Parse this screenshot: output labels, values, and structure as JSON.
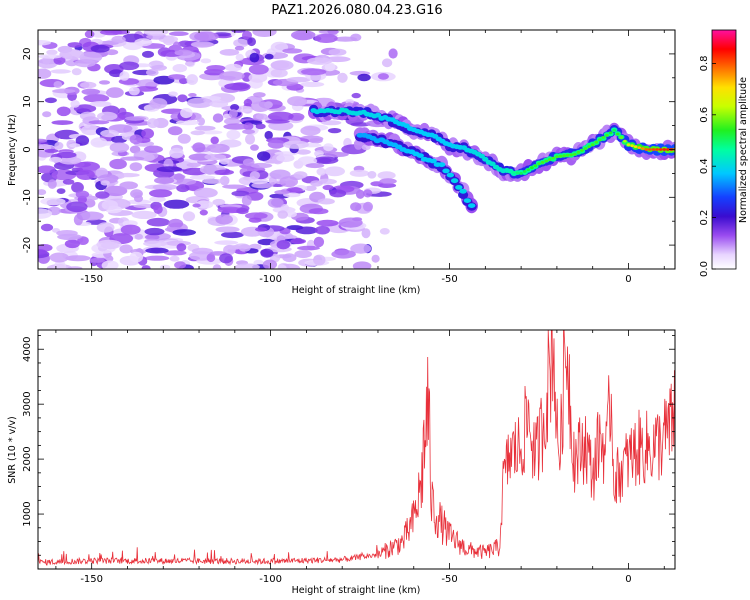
{
  "title": "PAZ1.2026.080.04.23.G16",
  "colors": {
    "snr_line": "#e8303a",
    "frame": "#000000",
    "track": "#2b0bc9"
  },
  "chart_data": [
    {
      "type": "heatmap",
      "xlabel": "Height of straight line (km)",
      "ylabel": "Frequency (Hz)",
      "xlim": [
        -165,
        13
      ],
      "ylim": [
        -25,
        25
      ],
      "xticks": [
        "-150",
        "-100",
        "-50",
        "0"
      ],
      "yticks": [
        "20",
        "10",
        "0",
        "-10",
        "-20"
      ],
      "colorbar": {
        "label": "Normalized spectral amplitude",
        "range": [
          0.0,
          0.93
        ],
        "ticks": [
          "0.0",
          "0.2",
          "0.4",
          "0.6",
          "0.8"
        ],
        "colormap": "rainbow (purple-blue-cyan-green-yellow-red-magenta)"
      },
      "main_track": {
        "height_km": [
          -88,
          -80,
          -72,
          -66,
          -60,
          -55,
          -50,
          -45,
          -40,
          -35,
          -30,
          -25,
          -20,
          -15,
          -10,
          -6,
          -4,
          0,
          5,
          10,
          13
        ],
        "frequency_hz": [
          8,
          8,
          7.5,
          6,
          4,
          3,
          1,
          0,
          -2,
          -4.5,
          -5,
          -3,
          -1.5,
          -1,
          1,
          3,
          4,
          1,
          0,
          0,
          0
        ],
        "amplitude": [
          0.35,
          0.4,
          0.35,
          0.3,
          0.3,
          0.3,
          0.3,
          0.35,
          0.4,
          0.45,
          0.55,
          0.6,
          0.6,
          0.6,
          0.6,
          0.6,
          0.55,
          0.7,
          0.85,
          0.9,
          0.9
        ]
      },
      "branch_track": {
        "height_km": [
          -75,
          -65,
          -58,
          -52,
          -47,
          -43
        ],
        "frequency_hz": [
          3,
          1,
          -1.5,
          -3.5,
          -8,
          -13
        ],
        "amplitude": [
          0.2,
          0.25,
          0.3,
          0.3,
          0.35,
          0.3
        ]
      },
      "noise_region_km": [
        -165,
        -70
      ]
    },
    {
      "type": "line",
      "xlabel": "Height of straight line (km)",
      "ylabel": "SNR (10 * v/v)",
      "xlim": [
        -165,
        13
      ],
      "ylim": [
        0,
        4350
      ],
      "xticks": [
        "-150",
        "-100",
        "-50",
        "0"
      ],
      "yticks": [
        "4000",
        "3000",
        "2000",
        "1000"
      ],
      "series": [
        {
          "name": "SNR",
          "x": [
            -165,
            -150,
            -100,
            -80,
            -70,
            -63,
            -60,
            -58,
            -57,
            -56,
            -55,
            -53,
            -50,
            -45,
            -40,
            -36,
            -35,
            -33,
            -30,
            -28,
            -26,
            -24,
            -22,
            -21,
            -20,
            -19,
            -18,
            -17,
            -16,
            -15,
            -12,
            -10,
            -8,
            -6,
            -5,
            -4,
            -2,
            0,
            3,
            6,
            9,
            12,
            13
          ],
          "values": [
            120,
            150,
            140,
            170,
            260,
            500,
            900,
            1500,
            2300,
            3050,
            1200,
            900,
            600,
            350,
            300,
            400,
            1600,
            2100,
            2200,
            2800,
            2000,
            2600,
            3600,
            4300,
            2400,
            2200,
            3700,
            4100,
            2600,
            2000,
            2300,
            1700,
            2400,
            2100,
            3300,
            1600,
            1800,
            2000,
            2200,
            2200,
            2300,
            2600,
            3000
          ]
        }
      ]
    }
  ]
}
